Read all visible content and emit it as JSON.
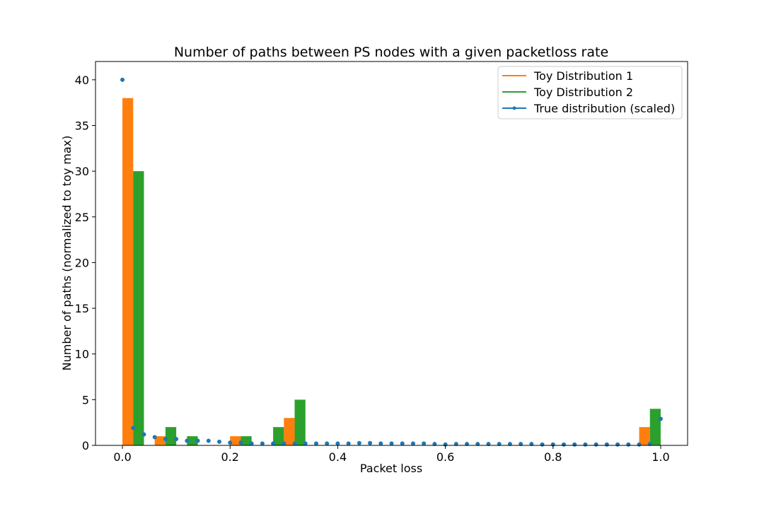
{
  "chart_data": {
    "type": "bar",
    "title": "Number of paths between PS nodes with a given packetloss rate",
    "xlabel": "Packet loss",
    "ylabel": "Number of paths (normalized to toy max)",
    "xlim": [
      -0.05,
      1.05
    ],
    "ylim": [
      0,
      42
    ],
    "xticks": [
      0.0,
      0.2,
      0.4,
      0.6,
      0.8,
      1.0
    ],
    "xtick_labels": [
      "0.0",
      "0.2",
      "0.4",
      "0.6",
      "0.8",
      "1.0"
    ],
    "yticks": [
      0,
      5,
      10,
      15,
      20,
      25,
      30,
      35,
      40
    ],
    "ytick_labels": [
      "0",
      "5",
      "10",
      "15",
      "20",
      "25",
      "30",
      "35",
      "40"
    ],
    "grid": false,
    "legend_position": "top-right",
    "bar_width": 0.02,
    "series": [
      {
        "name": "Toy Distribution 1",
        "kind": "bar",
        "color": "#ff7f0e",
        "x": [
          0.01,
          0.07,
          0.13,
          0.21,
          0.27,
          0.31,
          0.97
        ],
        "values": [
          38,
          1,
          0,
          1,
          0,
          3,
          2
        ]
      },
      {
        "name": "Toy Distribution 2",
        "kind": "bar",
        "color": "#2ca02c",
        "x": [
          0.03,
          0.09,
          0.13,
          0.23,
          0.29,
          0.33,
          0.99
        ],
        "values": [
          30,
          2,
          1,
          1,
          2,
          5,
          4
        ]
      },
      {
        "name": "True distribution (scaled)",
        "kind": "scatter",
        "color": "#1f77b4",
        "x": [
          0.0,
          0.02,
          0.04,
          0.06,
          0.08,
          0.1,
          0.12,
          0.14,
          0.16,
          0.18,
          0.2,
          0.22,
          0.24,
          0.26,
          0.28,
          0.3,
          0.32,
          0.34,
          0.36,
          0.38,
          0.4,
          0.42,
          0.44,
          0.46,
          0.48,
          0.5,
          0.52,
          0.54,
          0.56,
          0.58,
          0.6,
          0.62,
          0.64,
          0.66,
          0.68,
          0.7,
          0.72,
          0.74,
          0.76,
          0.78,
          0.8,
          0.82,
          0.84,
          0.86,
          0.88,
          0.9,
          0.92,
          0.94,
          0.96,
          0.98,
          1.0
        ],
        "values": [
          40,
          1.9,
          1.2,
          0.9,
          0.7,
          0.7,
          0.5,
          0.5,
          0.5,
          0.4,
          0.3,
          0.3,
          0.2,
          0.2,
          0.2,
          0.2,
          0.2,
          0.2,
          0.2,
          0.2,
          0.2,
          0.2,
          0.25,
          0.25,
          0.2,
          0.2,
          0.2,
          0.2,
          0.2,
          0.15,
          0.1,
          0.15,
          0.15,
          0.15,
          0.15,
          0.15,
          0.15,
          0.15,
          0.15,
          0.1,
          0.1,
          0.1,
          0.1,
          0.1,
          0.1,
          0.1,
          0.1,
          0.1,
          0.1,
          0.15,
          2.9
        ]
      }
    ]
  }
}
